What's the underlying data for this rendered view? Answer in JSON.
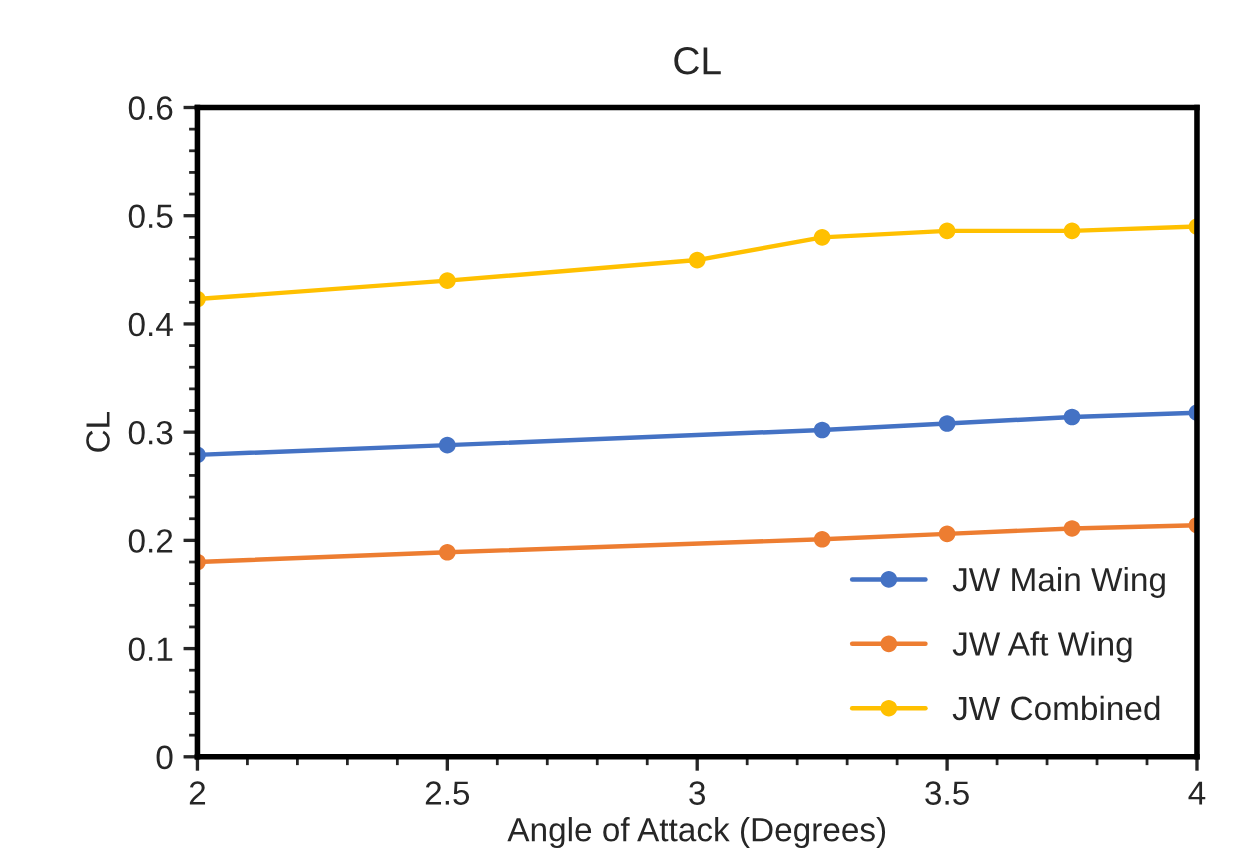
{
  "chart_data": {
    "type": "line",
    "title": "CL",
    "xlabel": "Angle of Attack (Degrees)",
    "ylabel": "CL",
    "series": [
      {
        "name": "JW Main Wing",
        "color": "#4472c4",
        "x": [
          2,
          2.5,
          3.25,
          3.5,
          3.75,
          4
        ],
        "values": [
          0.279,
          0.288,
          0.302,
          0.308,
          0.314,
          0.318
        ]
      },
      {
        "name": "JW Aft Wing",
        "color": "#ed7d31",
        "x": [
          2,
          2.5,
          3.25,
          3.5,
          3.75,
          4
        ],
        "values": [
          0.18,
          0.189,
          0.201,
          0.206,
          0.211,
          0.214
        ]
      },
      {
        "name": "JW Combined",
        "color": "#ffc000",
        "x": [
          2,
          2.5,
          3,
          3.25,
          3.5,
          3.75,
          4
        ],
        "values": [
          0.423,
          0.44,
          0.459,
          0.48,
          0.486,
          0.486,
          0.49
        ]
      }
    ],
    "xlim": [
      2,
      4
    ],
    "xticks": [
      2,
      2.5,
      3,
      3.5,
      4
    ],
    "ylim": [
      0,
      0.6
    ],
    "yticks": [
      0,
      0.1,
      0.2,
      0.3,
      0.4,
      0.5,
      0.6
    ],
    "grid": false,
    "legend": "bottom right",
    "marker": "circle",
    "line_style": "solid"
  }
}
